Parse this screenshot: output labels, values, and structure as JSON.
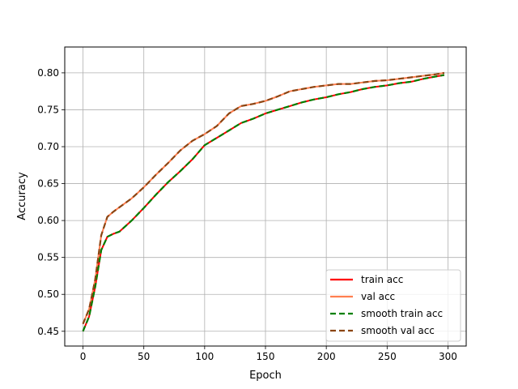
{
  "chart_data": {
    "type": "line",
    "title": "",
    "xlabel": "Epoch",
    "ylabel": "Accuracy",
    "xlim": [
      -15,
      315
    ],
    "ylim": [
      0.43,
      0.835
    ],
    "xticks": [
      0,
      50,
      100,
      150,
      200,
      250,
      300
    ],
    "yticks": [
      0.45,
      0.5,
      0.55,
      0.6,
      0.65,
      0.7,
      0.75,
      0.8
    ],
    "ytick_labels": [
      "0.45",
      "0.50",
      "0.55",
      "0.60",
      "0.65",
      "0.70",
      "0.75",
      "0.80"
    ],
    "grid": true,
    "legend_position": "lower-right",
    "x": [
      0,
      5,
      10,
      15,
      20,
      25,
      30,
      40,
      50,
      60,
      70,
      80,
      90,
      100,
      110,
      120,
      130,
      140,
      150,
      160,
      170,
      180,
      190,
      200,
      210,
      220,
      230,
      240,
      250,
      260,
      270,
      280,
      290,
      297
    ],
    "series": [
      {
        "name": "train acc",
        "color": "#ff0000",
        "style": "solid",
        "values": [
          0.45,
          0.47,
          0.51,
          0.56,
          0.578,
          0.582,
          0.585,
          0.6,
          0.617,
          0.635,
          0.652,
          0.667,
          0.683,
          0.702,
          0.712,
          0.722,
          0.732,
          0.738,
          0.745,
          0.75,
          0.755,
          0.76,
          0.764,
          0.767,
          0.771,
          0.774,
          0.778,
          0.781,
          0.783,
          0.786,
          0.788,
          0.792,
          0.795,
          0.797
        ]
      },
      {
        "name": "val acc",
        "color": "#ff7f50",
        "style": "solid",
        "values": [
          0.46,
          0.48,
          0.52,
          0.58,
          0.605,
          0.612,
          0.618,
          0.63,
          0.645,
          0.662,
          0.678,
          0.695,
          0.708,
          0.717,
          0.728,
          0.745,
          0.755,
          0.758,
          0.762,
          0.768,
          0.775,
          0.778,
          0.781,
          0.783,
          0.785,
          0.785,
          0.787,
          0.789,
          0.79,
          0.792,
          0.794,
          0.796,
          0.798,
          0.8
        ]
      },
      {
        "name": "smooth train acc",
        "color": "#008000",
        "style": "dashed",
        "values": [
          0.45,
          0.47,
          0.51,
          0.56,
          0.578,
          0.582,
          0.585,
          0.6,
          0.617,
          0.635,
          0.652,
          0.667,
          0.683,
          0.702,
          0.712,
          0.722,
          0.732,
          0.738,
          0.745,
          0.75,
          0.755,
          0.76,
          0.764,
          0.767,
          0.771,
          0.774,
          0.778,
          0.781,
          0.783,
          0.786,
          0.788,
          0.792,
          0.795,
          0.797
        ]
      },
      {
        "name": "smooth val acc",
        "color": "#8b4513",
        "style": "dashed",
        "values": [
          0.46,
          0.48,
          0.52,
          0.58,
          0.605,
          0.612,
          0.618,
          0.63,
          0.645,
          0.662,
          0.678,
          0.695,
          0.708,
          0.717,
          0.728,
          0.745,
          0.755,
          0.758,
          0.762,
          0.768,
          0.775,
          0.778,
          0.781,
          0.783,
          0.785,
          0.785,
          0.787,
          0.789,
          0.79,
          0.792,
          0.794,
          0.796,
          0.798,
          0.8
        ]
      }
    ]
  }
}
